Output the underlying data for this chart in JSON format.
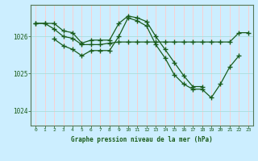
{
  "bg_color": "#cceeff",
  "grid_color_v": "#ffcccc",
  "grid_color_h": "#aadddd",
  "line_color": "#1a5c1a",
  "title": "Graphe pression niveau de la mer (hPa)",
  "title_color": "#1a5c1a",
  "xlim": [
    -0.5,
    23.5
  ],
  "ylim": [
    1023.6,
    1026.85
  ],
  "yticks": [
    1024,
    1025,
    1026
  ],
  "xticks": [
    0,
    1,
    2,
    3,
    4,
    5,
    6,
    7,
    8,
    9,
    10,
    11,
    12,
    13,
    14,
    15,
    16,
    17,
    18,
    19,
    20,
    21,
    22,
    23
  ],
  "series": [
    {
      "x": [
        0,
        1,
        2,
        3,
        4,
        5,
        6,
        7,
        8,
        9,
        10,
        11,
        12,
        13,
        14,
        15,
        16,
        17,
        18
      ],
      "y": [
        1026.35,
        1026.35,
        1026.35,
        1026.15,
        1026.1,
        1025.82,
        1025.9,
        1025.9,
        1025.9,
        1026.35,
        1026.55,
        1026.5,
        1026.4,
        1026.0,
        1025.65,
        1025.3,
        1024.95,
        1024.65,
        1024.65
      ]
    },
    {
      "x": [
        0,
        1,
        2,
        3,
        4,
        5,
        6,
        7,
        8,
        9,
        10,
        11,
        12,
        13,
        14,
        15,
        16,
        17,
        18,
        19,
        20,
        21,
        22,
        23
      ],
      "y": [
        1026.35,
        1026.35,
        1026.2,
        1026.0,
        1025.95,
        1025.78,
        1025.78,
        1025.78,
        1025.82,
        1025.85,
        1025.85,
        1025.85,
        1025.85,
        1025.85,
        1025.85,
        1025.85,
        1025.85,
        1025.85,
        1025.85,
        1025.85,
        1025.85,
        1025.85,
        1026.1,
        1026.1
      ]
    },
    {
      "x": [
        2,
        3,
        4,
        5,
        6,
        7,
        8,
        9,
        10,
        11,
        12,
        13,
        14,
        15,
        16,
        17,
        18,
        19,
        20,
        21,
        22
      ],
      "y": [
        1025.93,
        1025.75,
        1025.65,
        1025.48,
        1025.62,
        1025.62,
        1025.62,
        1026.0,
        1026.5,
        1026.42,
        1026.28,
        1025.78,
        1025.42,
        1024.97,
        1024.72,
        1024.58,
        1024.58,
        1024.35,
        1024.72,
        1025.18,
        1025.48
      ]
    }
  ]
}
